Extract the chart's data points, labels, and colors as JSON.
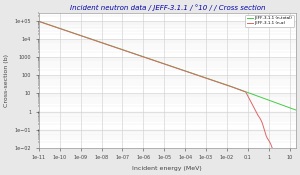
{
  "title": "Incident neutron data / JEFF-3.1.1 / °10 / / Cross section",
  "xlabel": "Incident energy (MeV)",
  "ylabel": "Cross-section (b)",
  "xmin": 1e-11,
  "xmax": 20,
  "ymin": 0.01,
  "ymax": 300000,
  "legend_green": "JEFF-3.1.1 (n,total)",
  "legend_red": "JEFF-3.1.1 (n,α)",
  "bg_color": "#e8e8e8",
  "plot_bg_color": "#ffffff",
  "grid_color": "#cccccc",
  "green_color": "#44cc44",
  "red_color": "#dd6666",
  "title_color": "#0000aa",
  "x_ticks_labels": [
    "1e-11",
    "1e-10",
    "1e-09",
    "1e-08",
    "1e-07",
    "1e-06",
    "1e-05",
    "1e-04",
    "1e-03",
    "1e-02",
    "0.1",
    "1",
    "10"
  ],
  "x_ticks_vals": [
    1e-11,
    1e-10,
    1e-09,
    1e-08,
    1e-07,
    1e-06,
    1e-05,
    0.0001,
    0.001,
    0.01,
    0.1,
    1,
    10
  ]
}
